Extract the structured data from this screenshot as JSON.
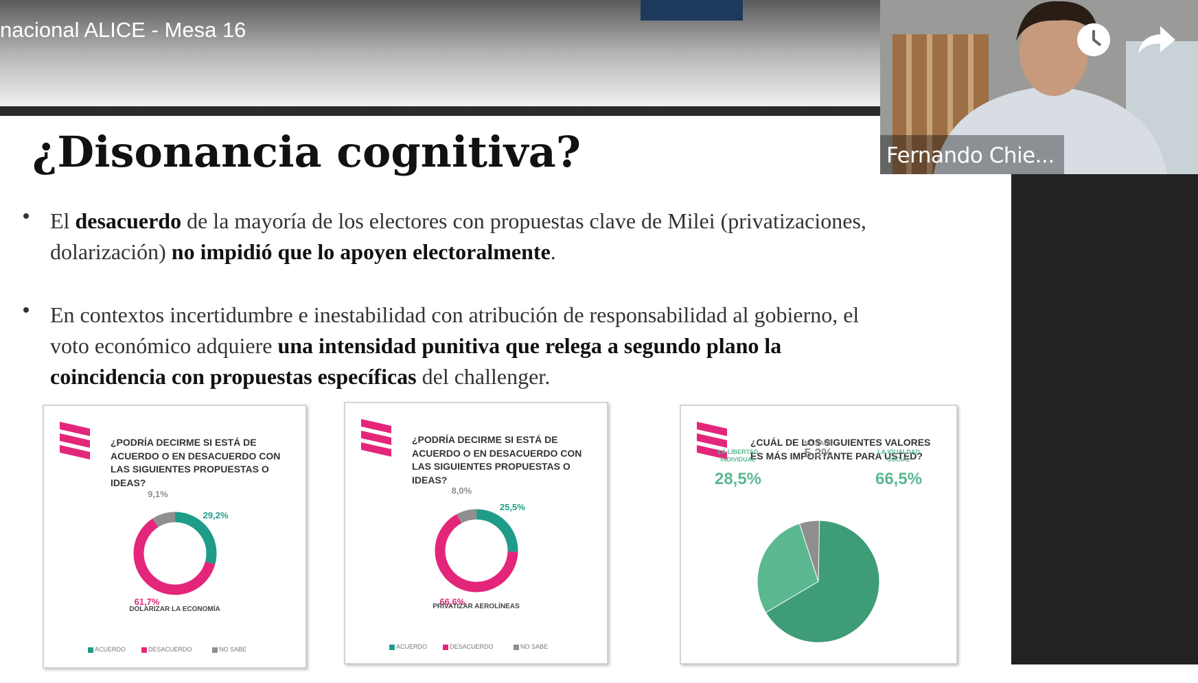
{
  "window": {
    "title": "nacional ALICE - Mesa 16"
  },
  "participant": {
    "name": "Fernando Chie..."
  },
  "slide": {
    "title": "¿Disonancia cognitiva?",
    "bullets": [
      [
        {
          "text": "El ",
          "bold": false
        },
        {
          "text": "desacuerdo",
          "bold": true
        },
        {
          "text": " de la mayoría de los electores con propuestas clave de Milei (privatizaciones, dolarización) ",
          "bold": false
        },
        {
          "text": "no impidió que lo apoyen electoralmente",
          "bold": true
        },
        {
          "text": ".",
          "bold": false
        }
      ],
      [
        {
          "text": "En contextos incertidumbre e inestabilidad con atribución de responsabilidad al gobierno, el voto económico adquiere ",
          "bold": false
        },
        {
          "text": "una intensidad punitiva que relega a segundo plano la coincidencia con propuestas específicas",
          "bold": true
        },
        {
          "text": " del challenger.",
          "bold": false
        }
      ]
    ],
    "panels": [
      {
        "type": "donut",
        "question": "¿PODRÍA DECIRME SI ESTÁ DE ACUERDO O EN DESACUERDO CON LAS SIGUIENTES PROPUESTAS O IDEAS?",
        "caption": "DOLARIZAR LA ECONOMÍA",
        "categories": [
          "ACUERDO",
          "DESACUERDO",
          "NO SABE"
        ],
        "values": [
          29.2,
          61.7,
          9.1
        ],
        "value_labels": [
          "29,2%",
          "61,7%",
          "9,1%"
        ],
        "colors": [
          "#1e9c88",
          "#e4267a",
          "#8f8f8f"
        ]
      },
      {
        "type": "donut",
        "question": "¿PODRÍA DECIRME SI ESTÁ DE ACUERDO O EN DESACUERDO CON LAS SIGUIENTES PROPUESTAS O IDEAS?",
        "caption": "PRIVATIZAR AEROLÍNEAS",
        "categories": [
          "ACUERDO",
          "DESACUERDO",
          "NO SABE"
        ],
        "values": [
          25.5,
          66.6,
          8.0
        ],
        "value_labels": [
          "25,5%",
          "66,6%",
          "8,0%"
        ],
        "colors": [
          "#1e9c88",
          "#e4267a",
          "#8f8f8f"
        ]
      },
      {
        "type": "pie",
        "question": "¿CUÁL DE LOS SIGUIENTES VALORES ES MÁS IMPORTANTE PARA USTED?",
        "categories": [
          "LA IGUALDAD SOCIAL",
          "LA LIBERTAD INDIVIDUAL",
          "NO SABE"
        ],
        "values": [
          66.5,
          28.5,
          5.3
        ],
        "value_labels": [
          "66,5%",
          "28,5%",
          "5,3%"
        ],
        "colors": [
          "#3e9c76",
          "#5bb891",
          "#8f8f8f"
        ]
      }
    ]
  }
}
